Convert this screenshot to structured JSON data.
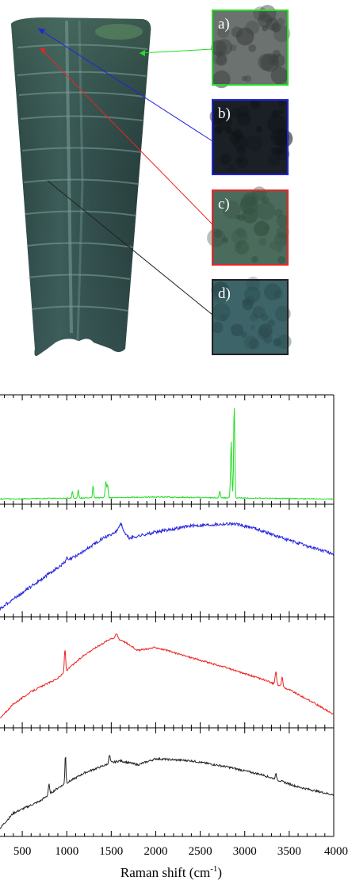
{
  "colors": {
    "green": "#22dd22",
    "blue": "#2222dd",
    "red": "#ee2222",
    "black": "#222222",
    "sample_dark": "#1d2f2e",
    "sample_mid": "#3a5a56",
    "sample_light": "#5f8a7e"
  },
  "photo": {
    "insets": [
      {
        "label": "a)",
        "color": "#22dd22",
        "fill": "#6c7270",
        "fill_dark": "#3c4240"
      },
      {
        "label": "b)",
        "color": "#2222dd",
        "fill": "#1a2026",
        "fill_dark": "#0f1418"
      },
      {
        "label": "c)",
        "color": "#ee2222",
        "fill": "#4b6b5c",
        "fill_dark": "#34503f"
      },
      {
        "label": "d)",
        "color": "#222222",
        "fill": "#3d6468",
        "fill_dark": "#2a4a4e"
      }
    ]
  },
  "chart_data": {
    "type": "line",
    "layout": "stacked-panels",
    "xlabel": "Raman shift (cm-1)",
    "xlabel_text": "Raman shift (cm",
    "xlabel_sup": "-1",
    "xlim": [
      250,
      4000
    ],
    "x_ticks": [
      "500",
      "1000",
      "1500",
      "2000",
      "2500",
      "3000",
      "3500",
      "4000"
    ],
    "x_tick_values": [
      500,
      1000,
      1500,
      2000,
      2500,
      3000,
      3500,
      4000
    ],
    "series": [
      {
        "color": "#22dd22",
        "baseline": [
          [
            250,
            0.02
          ],
          [
            2000,
            0.04
          ],
          [
            4000,
            0.02
          ]
        ],
        "peaks": [
          [
            1063,
            0.07,
            8
          ],
          [
            1130,
            0.08,
            8
          ],
          [
            1296,
            0.12,
            8
          ],
          [
            1440,
            0.16,
            12
          ],
          [
            1460,
            0.12,
            8
          ],
          [
            2720,
            0.06,
            10
          ],
          [
            2848,
            0.55,
            10
          ],
          [
            2882,
            0.93,
            9
          ]
        ],
        "noise": 0.005
      },
      {
        "color": "#2222dd",
        "baseline": [
          [
            250,
            0.04
          ],
          [
            300,
            0.08
          ],
          [
            500,
            0.2
          ],
          [
            800,
            0.38
          ],
          [
            1000,
            0.5
          ],
          [
            1200,
            0.6
          ],
          [
            1400,
            0.72
          ],
          [
            1500,
            0.76
          ],
          [
            1620,
            0.8
          ],
          [
            1700,
            0.72
          ],
          [
            1800,
            0.74
          ],
          [
            2000,
            0.78
          ],
          [
            2400,
            0.84
          ],
          [
            2850,
            0.86
          ],
          [
            3100,
            0.82
          ],
          [
            3500,
            0.7
          ],
          [
            3800,
            0.62
          ],
          [
            4000,
            0.57
          ]
        ],
        "peaks": [
          [
            1600,
            0.06,
            30
          ],
          [
            1000,
            0.03,
            12
          ]
        ],
        "noise": 0.015
      },
      {
        "color": "#ee2222",
        "baseline": [
          [
            250,
            0.06
          ],
          [
            400,
            0.2
          ],
          [
            600,
            0.32
          ],
          [
            900,
            0.45
          ],
          [
            1200,
            0.68
          ],
          [
            1500,
            0.84
          ],
          [
            1620,
            0.82
          ],
          [
            1800,
            0.72
          ],
          [
            2000,
            0.75
          ],
          [
            2400,
            0.65
          ],
          [
            2800,
            0.55
          ],
          [
            3200,
            0.44
          ],
          [
            3500,
            0.34
          ],
          [
            3800,
            0.2
          ],
          [
            4000,
            0.1
          ]
        ],
        "peaks": [
          [
            980,
            0.22,
            10
          ],
          [
            1560,
            0.05,
            20
          ],
          [
            3350,
            0.12,
            12
          ],
          [
            3420,
            0.09,
            12
          ]
        ],
        "noise": 0.008
      },
      {
        "color": "#222222",
        "baseline": [
          [
            250,
            0.05
          ],
          [
            400,
            0.2
          ],
          [
            700,
            0.32
          ],
          [
            900,
            0.45
          ],
          [
            1200,
            0.6
          ],
          [
            1500,
            0.7
          ],
          [
            1600,
            0.72
          ],
          [
            1800,
            0.68
          ],
          [
            2000,
            0.74
          ],
          [
            2400,
            0.72
          ],
          [
            2800,
            0.66
          ],
          [
            3200,
            0.58
          ],
          [
            3600,
            0.46
          ],
          [
            4000,
            0.38
          ]
        ],
        "peaks": [
          [
            800,
            0.1,
            10
          ],
          [
            985,
            0.3,
            8
          ],
          [
            1480,
            0.08,
            12
          ],
          [
            3350,
            0.05,
            12
          ]
        ],
        "noise": 0.01
      }
    ]
  }
}
